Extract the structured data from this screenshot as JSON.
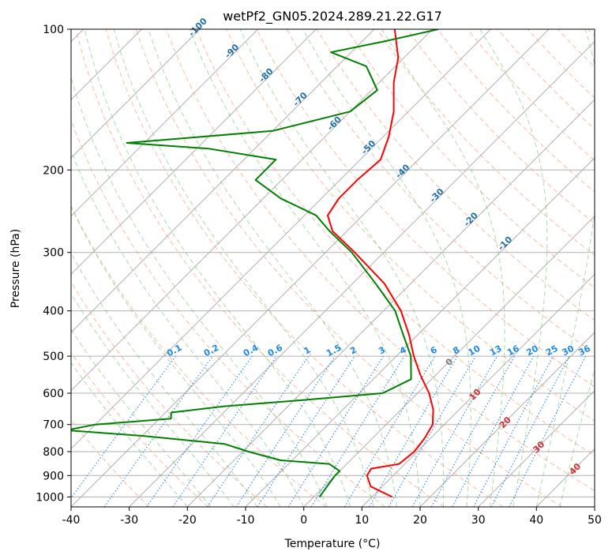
{
  "chart_data": {
    "type": "line",
    "title": "wetPf2_GN05.2024.289.21.22.G17",
    "xlabel": "Temperature (°C)",
    "ylabel": "Pressure (hPa)",
    "xlim": [
      -40,
      50
    ],
    "ylim": [
      1050,
      100
    ],
    "y_scale": "log",
    "grid": true,
    "skew": 45,
    "x_ticks": [
      -40,
      -30,
      -20,
      -10,
      0,
      10,
      20,
      30,
      40,
      50
    ],
    "y_ticks": [
      1000,
      900,
      800,
      700,
      600,
      500,
      400,
      300,
      200,
      100
    ],
    "series": [
      {
        "role": "temperature",
        "color": "#ff0000",
        "points": [
          {
            "p": 1000,
            "t": 13.5
          },
          {
            "p": 950,
            "t": 8.0
          },
          {
            "p": 900,
            "t": 5.5
          },
          {
            "p": 870,
            "t": 5.0
          },
          {
            "p": 850,
            "t": 9.0
          },
          {
            "p": 800,
            "t": 9.5
          },
          {
            "p": 750,
            "t": 9.0
          },
          {
            "p": 700,
            "t": 8.0
          },
          {
            "p": 650,
            "t": 5.5
          },
          {
            "p": 600,
            "t": 2.0
          },
          {
            "p": 550,
            "t": -2.5
          },
          {
            "p": 500,
            "t": -7.0
          },
          {
            "p": 450,
            "t": -11.5
          },
          {
            "p": 400,
            "t": -17.0
          },
          {
            "p": 350,
            "t": -24.5
          },
          {
            "p": 300,
            "t": -35.0
          },
          {
            "p": 270,
            "t": -42.5
          },
          {
            "p": 250,
            "t": -46.0
          },
          {
            "p": 230,
            "t": -47.0
          },
          {
            "p": 210,
            "t": -47.0
          },
          {
            "p": 190,
            "t": -46.5
          },
          {
            "p": 170,
            "t": -49.0
          },
          {
            "p": 150,
            "t": -52.5
          },
          {
            "p": 130,
            "t": -57.5
          },
          {
            "p": 115,
            "t": -61.0
          },
          {
            "p": 100,
            "t": -66.5
          }
        ]
      },
      {
        "role": "dewpoint",
        "color": "#008000",
        "points": [
          {
            "p": 1000,
            "t": 1.0
          },
          {
            "p": 950,
            "t": 0.5
          },
          {
            "p": 900,
            "t": 0.0
          },
          {
            "p": 880,
            "t": 0.0
          },
          {
            "p": 865,
            "t": -1.5
          },
          {
            "p": 850,
            "t": -3.0
          },
          {
            "p": 835,
            "t": -12.0
          },
          {
            "p": 800,
            "t": -19.0
          },
          {
            "p": 770,
            "t": -24.5
          },
          {
            "p": 740,
            "t": -40.0
          },
          {
            "p": 720,
            "t": -54.0
          },
          {
            "p": 700,
            "t": -50.0
          },
          {
            "p": 680,
            "t": -38.0
          },
          {
            "p": 660,
            "t": -39.0
          },
          {
            "p": 640,
            "t": -31.0
          },
          {
            "p": 620,
            "t": -18.0
          },
          {
            "p": 600,
            "t": -6.0
          },
          {
            "p": 560,
            "t": -3.5
          },
          {
            "p": 500,
            "t": -7.5
          },
          {
            "p": 450,
            "t": -12.5
          },
          {
            "p": 400,
            "t": -18.0
          },
          {
            "p": 350,
            "t": -26.0
          },
          {
            "p": 300,
            "t": -35.5
          },
          {
            "p": 270,
            "t": -43.0
          },
          {
            "p": 250,
            "t": -48.0
          },
          {
            "p": 230,
            "t": -57.0
          },
          {
            "p": 210,
            "t": -64.5
          },
          {
            "p": 190,
            "t": -64.5
          },
          {
            "p": 180,
            "t": -78.0
          },
          {
            "p": 175,
            "t": -93.0
          },
          {
            "p": 165,
            "t": -70.0
          },
          {
            "p": 150,
            "t": -60.0
          },
          {
            "p": 135,
            "t": -59.0
          },
          {
            "p": 120,
            "t": -65.0
          },
          {
            "p": 112,
            "t": -73.5
          },
          {
            "p": 106,
            "t": -66.0
          },
          {
            "p": 100,
            "t": -59.0
          }
        ]
      }
    ],
    "dry_adiabat_labels": [
      -100,
      -90,
      -80,
      -70,
      -60,
      -50,
      -40,
      -30,
      -20,
      -10
    ],
    "moist_adiabat_labels": [
      0,
      10,
      20,
      30,
      40
    ],
    "mixing_ratio_labels": [
      "0.1",
      "0.2",
      "0.4",
      "0.6",
      "1",
      "1.5",
      "2",
      "3",
      "4",
      "6",
      "8",
      "10",
      "13",
      "16",
      "20",
      "25",
      "30",
      "36"
    ],
    "mixing_ratio_values": [
      0.1,
      0.2,
      0.4,
      0.6,
      1,
      1.5,
      2,
      3,
      4,
      6,
      8,
      10,
      13,
      16,
      20,
      25,
      30,
      36
    ]
  }
}
